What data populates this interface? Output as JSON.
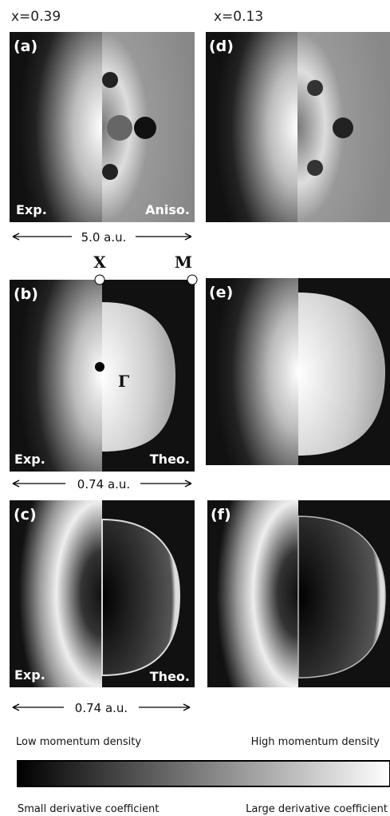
{
  "columns": [
    "x=0.39",
    "x=0.13"
  ],
  "panels": [
    {
      "label": "(a)",
      "left": "Exp.",
      "right": "Aniso."
    },
    {
      "label": "(b)",
      "left": "Exp.",
      "right": "Theo."
    },
    {
      "label": "(c)",
      "left": "Exp.",
      "right": "Theo."
    },
    {
      "label": "(d)"
    },
    {
      "label": "(e)"
    },
    {
      "label": "(f)"
    }
  ],
  "scales": [
    "5.0 a.u.",
    "0.74 a.u.",
    "0.74 a.u."
  ],
  "points": {
    "X": "X",
    "M": "M",
    "Gamma": "Γ"
  },
  "colorbar": {
    "top_left": "Low momentum density",
    "top_right": "High momentum density",
    "bottom_left": "Small derivative coefficient",
    "bottom_right": "Large derivative coefficient"
  }
}
